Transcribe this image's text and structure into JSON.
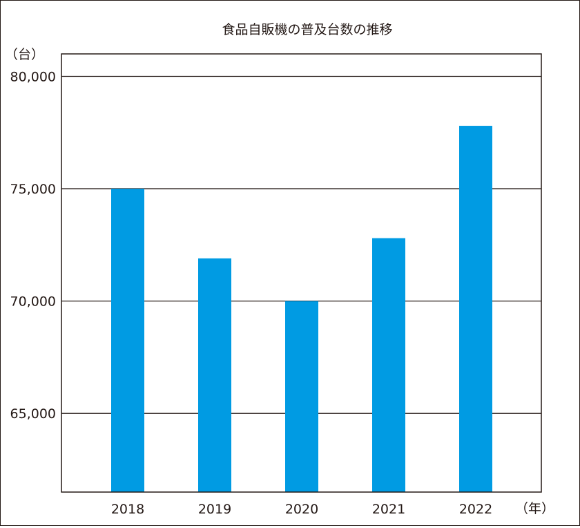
{
  "chart_data": {
    "type": "bar",
    "title": "食品自販機の普及台数の推移",
    "ylabel": "（台）",
    "xlabel": "（年）",
    "categories": [
      "2018",
      "2019",
      "2020",
      "2021",
      "2022"
    ],
    "values": [
      75000,
      71900,
      70000,
      72800,
      77800
    ],
    "ylim": [
      61500,
      81000
    ],
    "yticks": [
      65000,
      70000,
      75000,
      80000
    ],
    "ytick_labels": [
      "65,000",
      "70,000",
      "75,000",
      "80,000"
    ],
    "grid": true,
    "bar_color": "#009be3",
    "line_color": "#231815"
  }
}
